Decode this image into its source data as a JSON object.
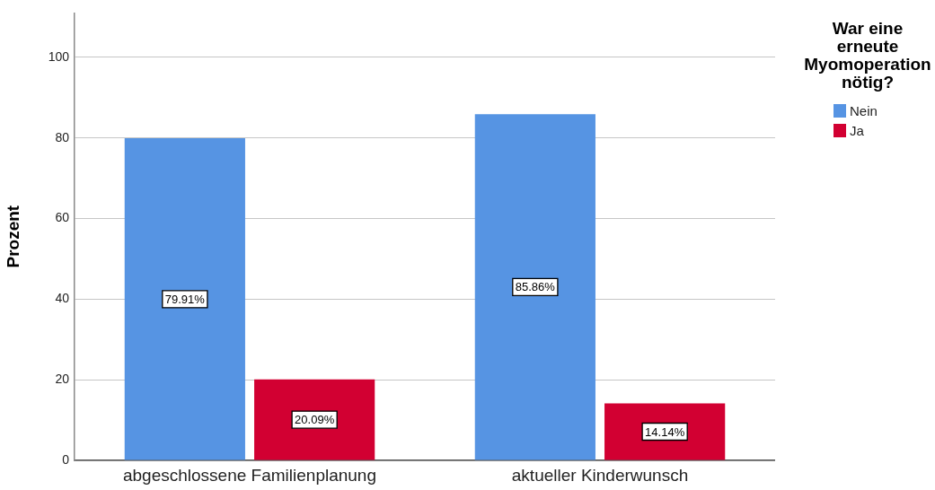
{
  "chart_data": {
    "type": "bar",
    "ylabel": "Prozent",
    "legend_title": "War eine erneute Myomoperation nötig?",
    "categories": [
      "abgeschlossene Familienplanung",
      "aktueller Kinderwunsch"
    ],
    "series": [
      {
        "name": "Nein",
        "color": "#5694e3",
        "values": [
          79.91,
          85.86
        ],
        "value_labels": [
          "79.91%",
          "85.86%"
        ]
      },
      {
        "name": "Ja",
        "color": "#d20032",
        "values": [
          20.09,
          14.14
        ],
        "value_labels": [
          "20.09%",
          "14.14%"
        ]
      }
    ],
    "ylim": [
      0,
      111
    ],
    "yticks": [
      0,
      20,
      40,
      60,
      80,
      100
    ],
    "grid": "y",
    "legend": "top right"
  }
}
